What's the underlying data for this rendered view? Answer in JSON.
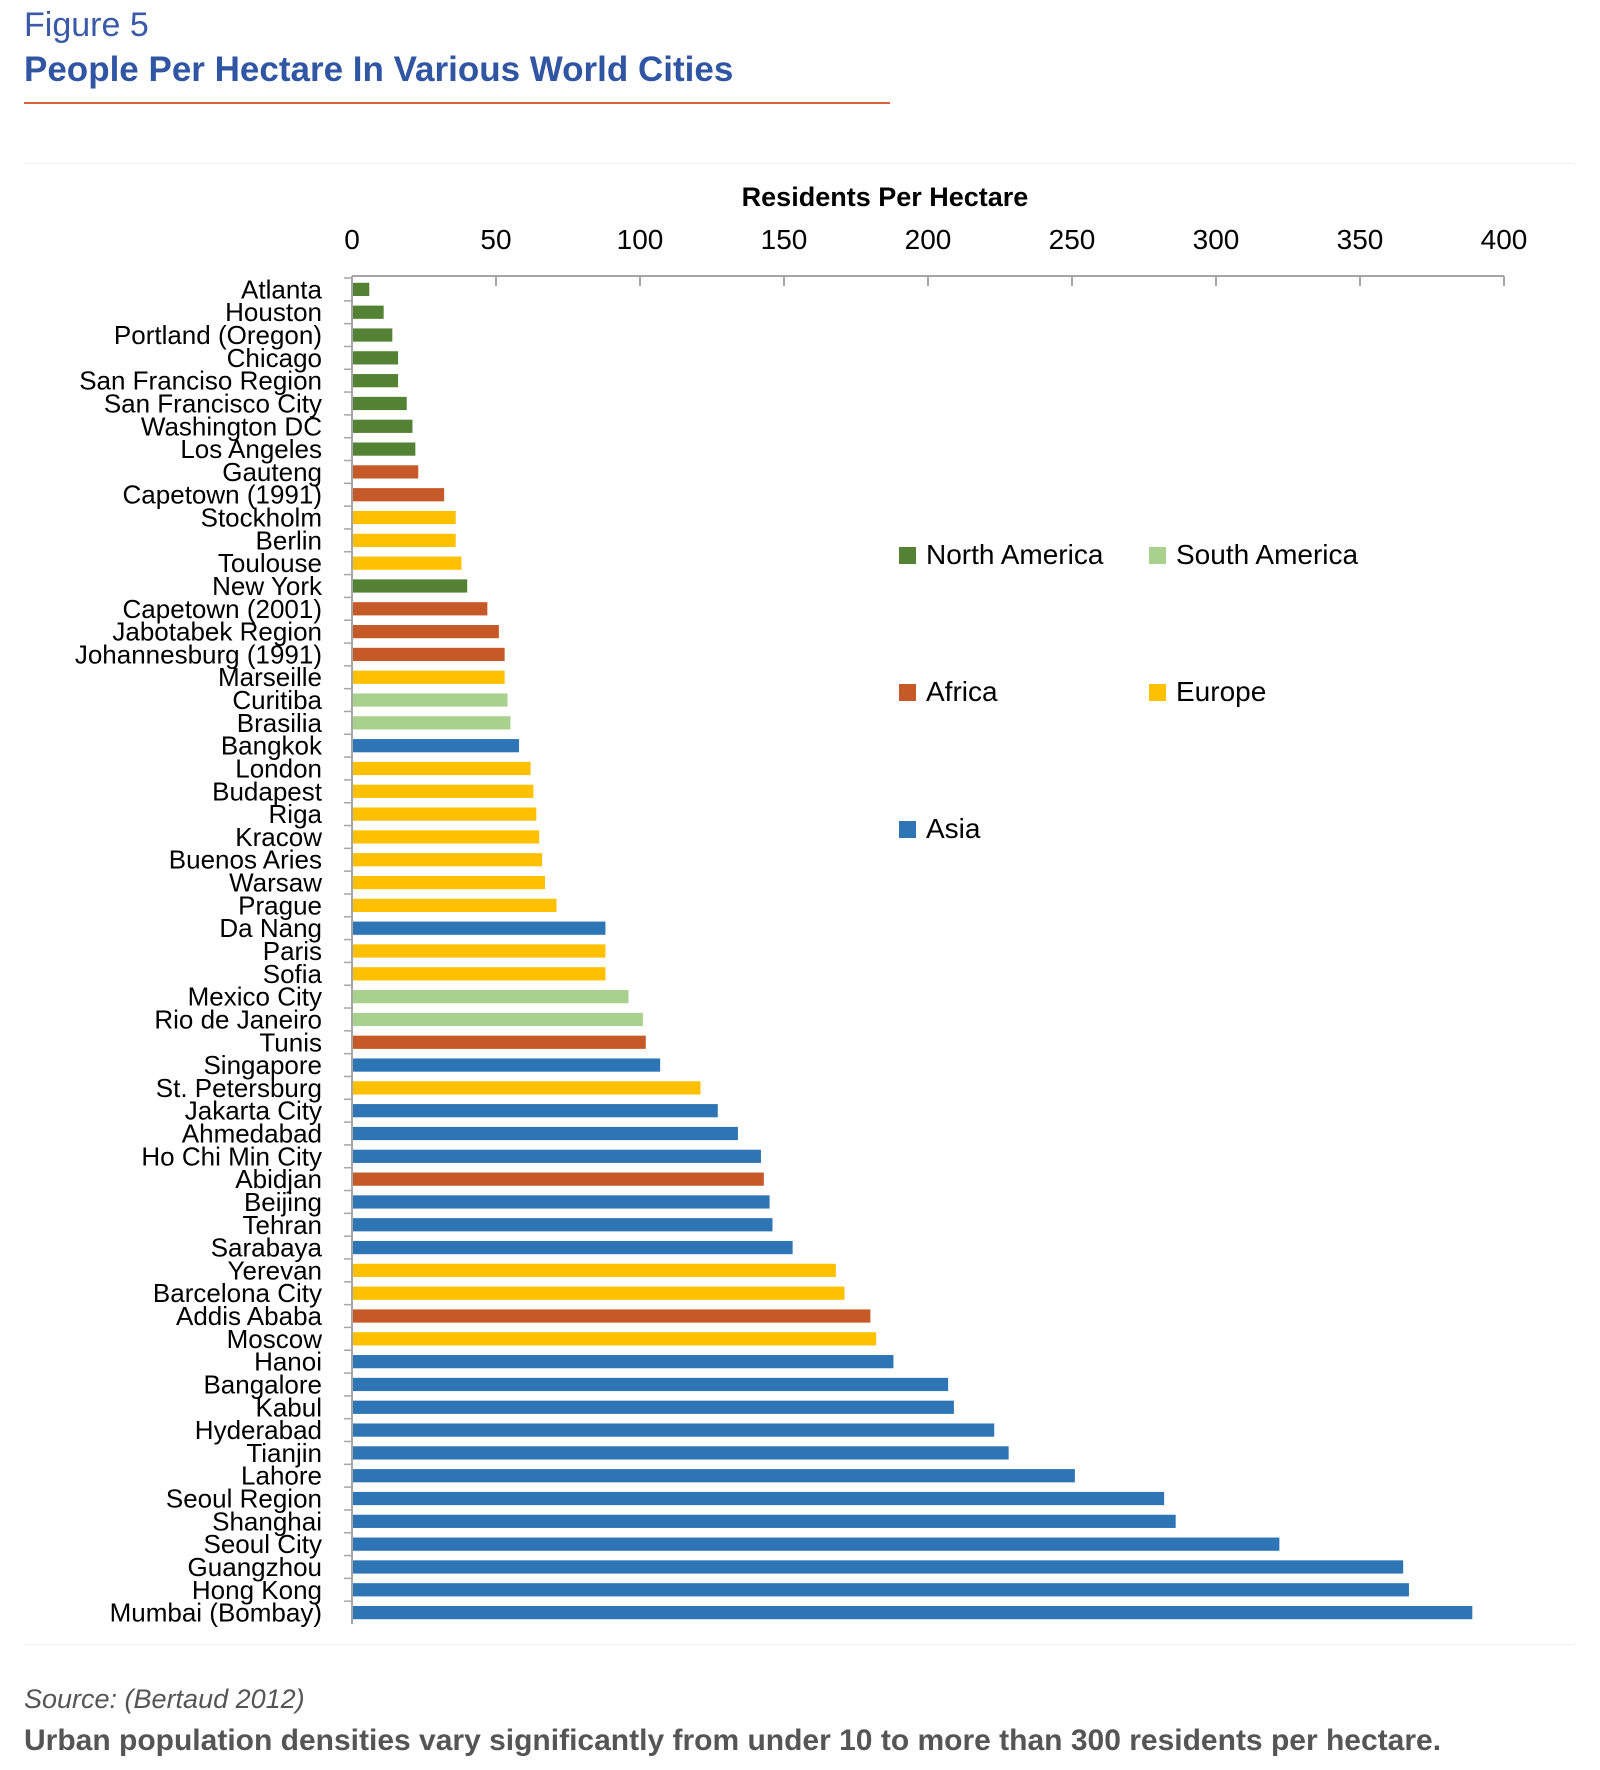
{
  "header": {
    "figure_label": "Figure 5",
    "title": "People Per Hectare In Various World Cities"
  },
  "footer": {
    "source": "Source: (Bertaud 2012)",
    "caption": "Urban population densities vary significantly from under 10 to more than 300 residents per hectare."
  },
  "chart_data": {
    "type": "bar",
    "orientation": "horizontal",
    "xlabel": "Residents Per Hectare",
    "xlim": [
      0,
      400
    ],
    "xticks": [
      0,
      50,
      100,
      150,
      200,
      250,
      300,
      350,
      400
    ],
    "grid": false,
    "legend_position": "right",
    "legend": [
      {
        "name": "North America",
        "color": "#548235"
      },
      {
        "name": "South America",
        "color": "#a9d18e"
      },
      {
        "name": "Africa",
        "color": "#c55a28"
      },
      {
        "name": "Europe",
        "color": "#ffc000"
      },
      {
        "name": "Asia",
        "color": "#2e75b6"
      }
    ],
    "categories": [
      "Atlanta",
      "Houston",
      "Portland (Oregon)",
      "Chicago",
      "San Franciso Region",
      "San Francisco City",
      "Washington DC",
      "Los Angeles",
      "Gauteng",
      "Capetown (1991)",
      "Stockholm",
      "Berlin",
      "Toulouse",
      "New York",
      "Capetown (2001)",
      "Jabotabek Region",
      "Johannesburg (1991)",
      "Marseille",
      "Curitiba",
      "Brasilia",
      "Bangkok",
      "London",
      "Budapest",
      "Riga",
      "Kracow",
      "Buenos Aries",
      "Warsaw",
      "Prague",
      "Da Nang",
      "Paris",
      "Sofia",
      "Mexico City",
      "Rio de Janeiro",
      "Tunis",
      "Singapore",
      "St. Petersburg",
      "Jakarta City",
      "Ahmedabad",
      "Ho Chi Min City",
      "Abidjan",
      "Beijing",
      "Tehran",
      "Sarabaya",
      "Yerevan",
      "Barcelona City",
      "Addis Ababa",
      "Moscow",
      "Hanoi",
      "Bangalore",
      "Kabul",
      "Hyderabad",
      "Tianjin",
      "Lahore",
      "Seoul Region",
      "Shanghai",
      "Seoul City",
      "Guangzhou",
      "Hong Kong",
      "Mumbai (Bombay)"
    ],
    "values": [
      6,
      11,
      14,
      16,
      16,
      19,
      21,
      22,
      23,
      32,
      36,
      36,
      38,
      40,
      47,
      51,
      53,
      53,
      54,
      55,
      58,
      62,
      63,
      64,
      65,
      66,
      67,
      71,
      88,
      88,
      88,
      96,
      101,
      102,
      107,
      121,
      127,
      134,
      142,
      143,
      145,
      146,
      153,
      168,
      171,
      180,
      182,
      188,
      207,
      209,
      223,
      228,
      251,
      282,
      286,
      322,
      365,
      367,
      389
    ],
    "regions": [
      "North America",
      "North America",
      "North America",
      "North America",
      "North America",
      "North America",
      "North America",
      "North America",
      "Africa",
      "Africa",
      "Europe",
      "Europe",
      "Europe",
      "North America",
      "Africa",
      "Africa",
      "Africa",
      "Europe",
      "South America",
      "South America",
      "Asia",
      "Europe",
      "Europe",
      "Europe",
      "Europe",
      "Europe",
      "Europe",
      "Europe",
      "Asia",
      "Europe",
      "Europe",
      "South America",
      "South America",
      "Africa",
      "Asia",
      "Europe",
      "Asia",
      "Asia",
      "Asia",
      "Africa",
      "Asia",
      "Asia",
      "Asia",
      "Europe",
      "Europe",
      "Africa",
      "Europe",
      "Asia",
      "Asia",
      "Asia",
      "Asia",
      "Asia",
      "Asia",
      "Asia",
      "Asia",
      "Asia",
      "Asia",
      "Asia",
      "Asia"
    ]
  }
}
